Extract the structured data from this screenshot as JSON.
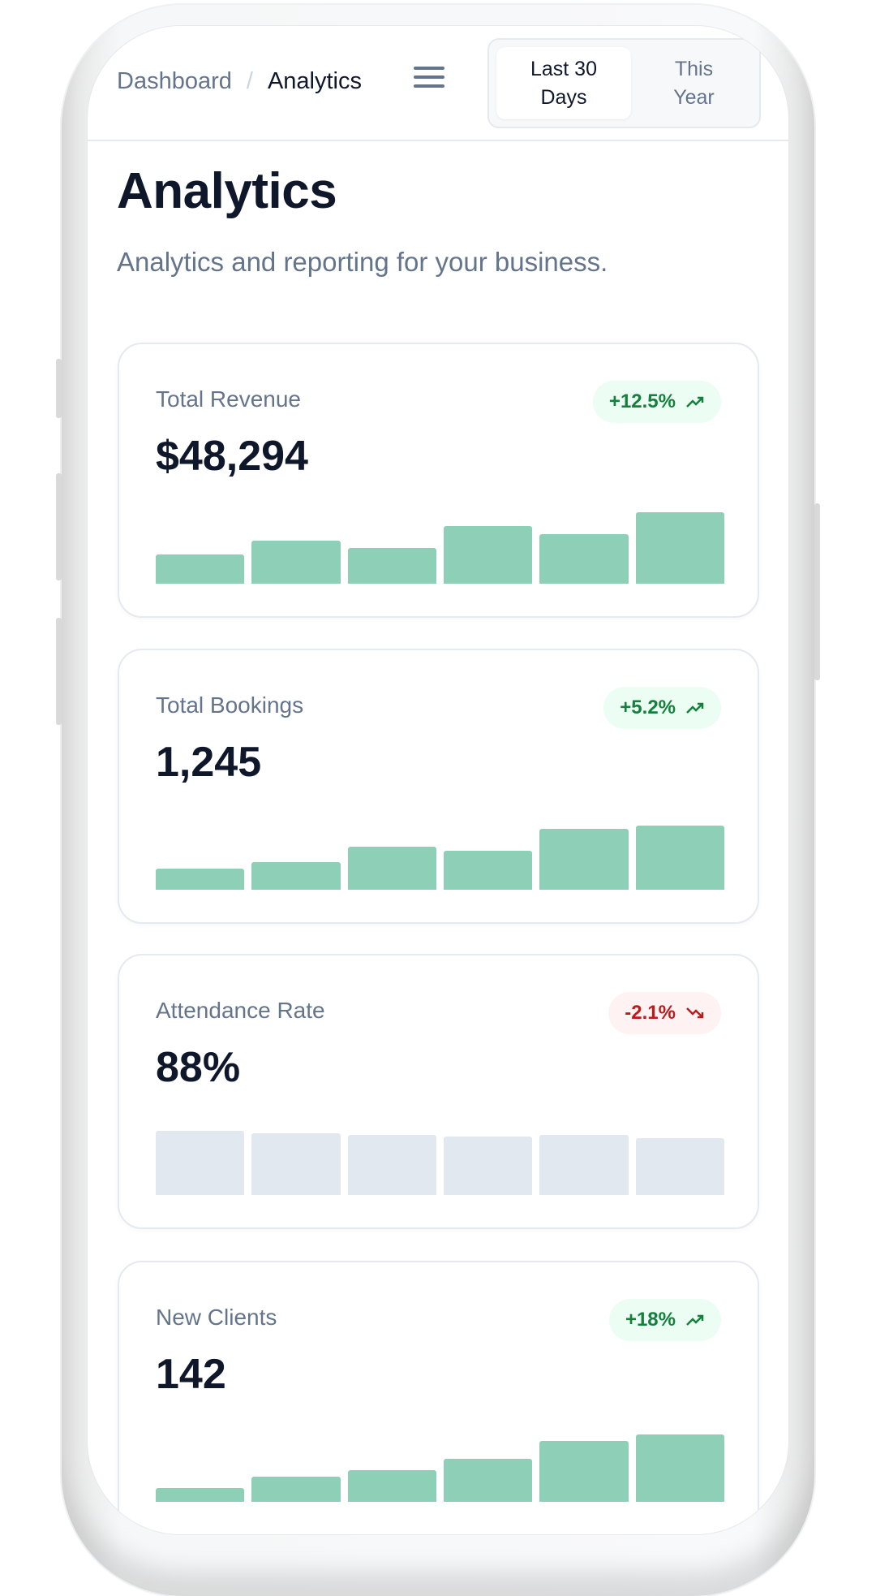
{
  "header": {
    "breadcrumb": [
      {
        "label": "Dashboard"
      },
      {
        "label": "Analytics"
      }
    ],
    "breadcrumb_separator": "/",
    "menu_icon": "hamburger-icon",
    "range_toggle": {
      "options": [
        {
          "label_line1": "Last 30",
          "label_line2": "Days",
          "selected": true
        },
        {
          "label_line1": "This",
          "label_line2": "Year",
          "selected": false
        }
      ]
    }
  },
  "page": {
    "title": "Analytics",
    "subtitle": "Analytics and reporting for your business."
  },
  "colors": {
    "bar_positive": "#8ecfb8",
    "bar_neutral": "#e2e8f0",
    "badge_up_bg": "#ecfdf3",
    "badge_up_text": "#15803d",
    "badge_down_bg": "#fef2f2",
    "badge_down_text": "#b91c1c"
  },
  "cards": [
    {
      "label": "Total Revenue",
      "value": "$48,294",
      "change": "+12.5%",
      "trend": "up",
      "trend_icon": "trending-up-icon",
      "bar_style": "positive",
      "bars": [
        29,
        43,
        36,
        58,
        50,
        72
      ]
    },
    {
      "label": "Total Bookings",
      "value": "1,245",
      "change": "+5.2%",
      "trend": "up",
      "trend_icon": "trending-up-icon",
      "bar_style": "positive",
      "bars": [
        21,
        28,
        43,
        39,
        61,
        64
      ]
    },
    {
      "label": "Attendance Rate",
      "value": "88%",
      "change": "-2.1%",
      "trend": "down",
      "trend_icon": "trending-down-icon",
      "bar_style": "neutral",
      "bars": [
        64,
        62,
        60,
        59,
        60,
        57
      ]
    },
    {
      "label": "New Clients",
      "value": "142",
      "change": "+18%",
      "trend": "up",
      "trend_icon": "trending-up-icon",
      "bar_style": "positive",
      "bars": [
        14,
        25,
        32,
        43,
        61,
        68
      ]
    }
  ]
}
